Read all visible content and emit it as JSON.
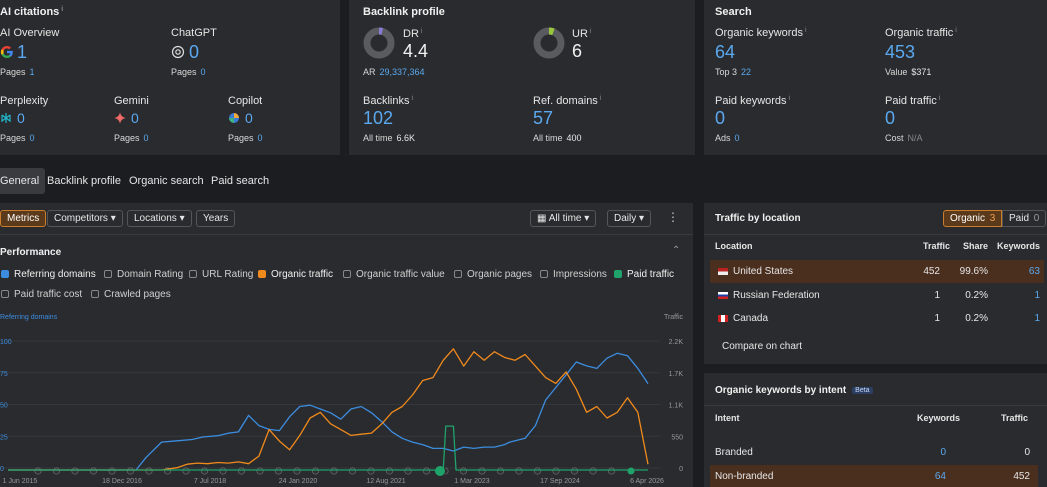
{
  "ai_citations": {
    "title": "AI citations",
    "ai_overview": {
      "label": "AI Overview",
      "value": "1",
      "pages_label": "Pages",
      "pages": "1"
    },
    "chatgpt": {
      "label": "ChatGPT",
      "value": "0",
      "pages_label": "Pages",
      "pages": "0"
    },
    "perplexity": {
      "label": "Perplexity",
      "value": "0",
      "pages_label": "Pages",
      "pages": "0"
    },
    "gemini": {
      "label": "Gemini",
      "value": "0",
      "pages_label": "Pages",
      "pages": "0"
    },
    "copilot": {
      "label": "Copilot",
      "value": "0",
      "pages_label": "Pages",
      "pages": "0"
    }
  },
  "backlink_profile": {
    "title": "Backlink profile",
    "dr": {
      "label": "DR",
      "value": "4.4",
      "ar_label": "AR",
      "ar": "29,337,364"
    },
    "ur": {
      "label": "UR",
      "value": "6"
    },
    "backlinks": {
      "label": "Backlinks",
      "value": "102",
      "all_time_label": "All time",
      "all_time": "6.6K"
    },
    "ref_domains": {
      "label": "Ref. domains",
      "value": "57",
      "all_time_label": "All time",
      "all_time": "400"
    }
  },
  "search": {
    "title": "Search",
    "organic_keywords": {
      "label": "Organic keywords",
      "value": "64",
      "top3_label": "Top 3",
      "top3": "22"
    },
    "organic_traffic": {
      "label": "Organic traffic",
      "value": "453",
      "value_label": "Value",
      "value_amount": "$371"
    },
    "paid_keywords": {
      "label": "Paid keywords",
      "value": "0",
      "ads_label": "Ads",
      "ads": "0"
    },
    "paid_traffic": {
      "label": "Paid traffic",
      "value": "0",
      "cost_label": "Cost",
      "cost": "N/A"
    }
  },
  "tabs": [
    "General",
    "Backlink profile",
    "Organic search",
    "Paid search"
  ],
  "toolbar": {
    "metrics": "Metrics",
    "competitors": "Competitors",
    "locations": "Locations",
    "years": "Years",
    "all_time": "All time",
    "daily": "Daily"
  },
  "performance": {
    "title": "Performance",
    "checkboxes": [
      {
        "label": "Referring domains",
        "checked": true,
        "color": "#3c8de0"
      },
      {
        "label": "Domain Rating",
        "checked": false
      },
      {
        "label": "URL Rating",
        "checked": false
      },
      {
        "label": "Organic traffic",
        "checked": true,
        "color": "#f08a1c"
      },
      {
        "label": "Organic traffic value",
        "checked": false
      },
      {
        "label": "Organic pages",
        "checked": false
      },
      {
        "label": "Impressions",
        "checked": false
      },
      {
        "label": "Paid traffic",
        "checked": true,
        "color": "#1fa36b"
      },
      {
        "label": "Paid traffic cost",
        "checked": false
      },
      {
        "label": "Crawled pages",
        "checked": false
      }
    ],
    "left_axis_title": "Referring domains",
    "right_axis_title": "Traffic"
  },
  "chart_data": {
    "type": "line",
    "x_ticks": [
      "1 Jun 2015",
      "18 Dec 2016",
      "7 Jul 2018",
      "24 Jan 2020",
      "12 Aug 2021",
      "1 Mar 2023",
      "17 Sep 2024",
      "6 Apr 2026"
    ],
    "left_ticks": [
      "100",
      "75",
      "50",
      "25",
      "0"
    ],
    "right_ticks": [
      "2.2K",
      "1.7K",
      "1.1K",
      "550",
      "0"
    ],
    "left_ylim": [
      0,
      100
    ],
    "right_ylim": [
      0,
      2200
    ],
    "series": [
      {
        "name": "Referring domains",
        "axis": "left",
        "color": "#3c8de0",
        "points": [
          [
            0,
            0
          ],
          [
            0.25,
            0
          ],
          [
            0.27,
            10
          ],
          [
            0.3,
            22
          ],
          [
            0.33,
            23
          ],
          [
            0.36,
            24
          ],
          [
            0.38,
            26
          ],
          [
            0.41,
            27
          ],
          [
            0.43,
            29
          ],
          [
            0.45,
            30
          ],
          [
            0.47,
            43
          ],
          [
            0.49,
            35
          ],
          [
            0.51,
            32
          ],
          [
            0.53,
            31
          ],
          [
            0.55,
            42
          ],
          [
            0.57,
            50
          ],
          [
            0.59,
            51
          ],
          [
            0.61,
            48
          ],
          [
            0.63,
            45
          ],
          [
            0.65,
            40
          ],
          [
            0.67,
            48
          ],
          [
            0.69,
            50
          ],
          [
            0.71,
            45
          ],
          [
            0.73,
            38
          ],
          [
            0.75,
            30
          ],
          [
            0.77,
            25
          ],
          [
            0.79,
            22
          ],
          [
            0.81,
            20
          ],
          [
            0.83,
            17
          ],
          [
            0.85,
            17
          ],
          [
            0.87,
            15
          ],
          [
            0.89,
            18
          ],
          [
            0.91,
            17
          ],
          [
            0.93,
            18
          ],
          [
            0.95,
            18
          ],
          [
            0.97,
            20
          ],
          [
            0.98,
            22
          ],
          [
            1.01,
            25
          ],
          [
            1.03,
            35
          ],
          [
            1.05,
            55
          ],
          [
            1.07,
            65
          ],
          [
            1.09,
            75
          ],
          [
            1.11,
            85
          ],
          [
            1.13,
            82
          ],
          [
            1.15,
            80
          ],
          [
            1.17,
            88
          ],
          [
            1.19,
            92
          ],
          [
            1.21,
            90
          ],
          [
            1.23,
            80
          ],
          [
            1.25,
            68
          ]
        ]
      },
      {
        "name": "Organic traffic",
        "axis": "right",
        "color": "#f08a1c",
        "points": [
          [
            0,
            0
          ],
          [
            0.3,
            0
          ],
          [
            0.33,
            40
          ],
          [
            0.35,
            100
          ],
          [
            0.37,
            120
          ],
          [
            0.39,
            110
          ],
          [
            0.41,
            130
          ],
          [
            0.43,
            120
          ],
          [
            0.45,
            140
          ],
          [
            0.47,
            110
          ],
          [
            0.49,
            240
          ],
          [
            0.51,
            700
          ],
          [
            0.53,
            500
          ],
          [
            0.55,
            350
          ],
          [
            0.57,
            600
          ],
          [
            0.59,
            900
          ],
          [
            0.61,
            1000
          ],
          [
            0.63,
            800
          ],
          [
            0.65,
            700
          ],
          [
            0.67,
            600
          ],
          [
            0.69,
            620
          ],
          [
            0.71,
            640
          ],
          [
            0.73,
            800
          ],
          [
            0.75,
            1000
          ],
          [
            0.77,
            1100
          ],
          [
            0.79,
            1300
          ],
          [
            0.81,
            1550
          ],
          [
            0.83,
            1600
          ],
          [
            0.85,
            1900
          ],
          [
            0.87,
            2100
          ],
          [
            0.89,
            1800
          ],
          [
            0.91,
            2050
          ],
          [
            0.93,
            1900
          ],
          [
            0.95,
            2050
          ],
          [
            0.97,
            1950
          ],
          [
            0.99,
            1900
          ],
          [
            1.01,
            2000
          ],
          [
            1.03,
            1800
          ],
          [
            1.05,
            1600
          ],
          [
            1.07,
            1500
          ],
          [
            1.09,
            1700
          ],
          [
            1.11,
            1400
          ],
          [
            1.13,
            1000
          ],
          [
            1.15,
            1100
          ],
          [
            1.17,
            900
          ],
          [
            1.19,
            1000
          ],
          [
            1.21,
            1250
          ],
          [
            1.23,
            1000
          ],
          [
            1.25,
            100
          ]
        ]
      },
      {
        "name": "Paid traffic",
        "axis": "right",
        "color": "#1fa36b",
        "points": [
          [
            0,
            0
          ],
          [
            0.85,
            0
          ],
          [
            0.855,
            760
          ],
          [
            0.87,
            760
          ],
          [
            0.875,
            0
          ],
          [
            1.25,
            0
          ]
        ]
      }
    ]
  },
  "traffic_by_location": {
    "title": "Traffic by location",
    "organic_label": "Organic",
    "organic_count": "3",
    "paid_label": "Paid",
    "paid_count": "0",
    "columns": [
      "Location",
      "Traffic",
      "Share",
      "Keywords"
    ],
    "rows": [
      {
        "location": "United States",
        "traffic": "452",
        "share": "99.6%",
        "keywords": "63"
      },
      {
        "location": "Russian Federation",
        "traffic": "1",
        "share": "0.2%",
        "keywords": "1"
      },
      {
        "location": "Canada",
        "traffic": "1",
        "share": "0.2%",
        "keywords": "1"
      }
    ],
    "compare": "Compare on chart"
  },
  "keywords_by_intent": {
    "title": "Organic keywords by intent",
    "beta": "Beta",
    "columns": [
      "Intent",
      "Keywords",
      "Traffic"
    ],
    "rows": [
      {
        "intent": "Branded",
        "keywords": "0",
        "traffic": "0"
      },
      {
        "intent": "Non-branded",
        "keywords": "64",
        "traffic": "452"
      }
    ]
  }
}
